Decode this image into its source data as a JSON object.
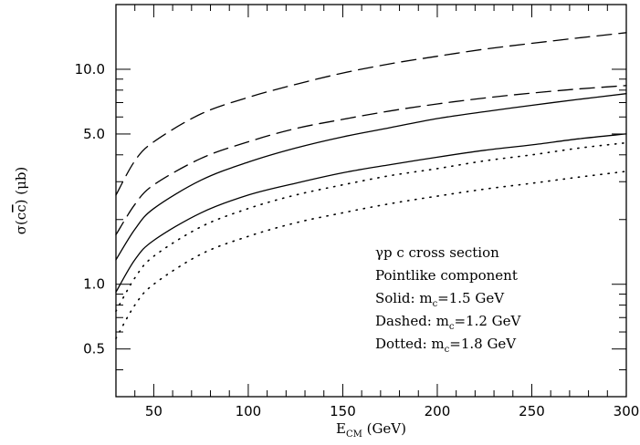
{
  "chart_data": {
    "type": "line",
    "xlabel": {
      "main": "E",
      "sub": "CM",
      "rest": " (GeV)"
    },
    "ylabel": {
      "pre": "σ(c",
      "over": "c",
      "post": ") (μb)"
    },
    "x_scale": "linear",
    "y_scale": "log",
    "xlim": [
      30,
      300
    ],
    "ylim": [
      0.3,
      20
    ],
    "xticks": [
      50,
      100,
      150,
      200,
      250,
      300
    ],
    "xtick_labels": [
      "50",
      "100",
      "150",
      "200",
      "250",
      "300"
    ],
    "yticks": [
      0.5,
      1.0,
      5.0,
      10.0
    ],
    "ytick_labels": [
      "0.5",
      "1.0",
      "5.0",
      "10.0"
    ],
    "annotations": [
      {
        "text": "γp  c cross section"
      },
      {
        "text": "Pointlike component"
      },
      {
        "text": "Solid:  m",
        "sub": "c",
        "rest": "=1.5 GeV"
      },
      {
        "text": "Dashed: m",
        "sub": "c",
        "rest": "=1.2 GeV"
      },
      {
        "text": "Dotted: m",
        "sub": "c",
        "rest": "=1.8 GeV"
      }
    ],
    "x": [
      30,
      40,
      50,
      75,
      100,
      125,
      150,
      175,
      200,
      225,
      250,
      275,
      300
    ],
    "series": [
      {
        "style": "dashed",
        "values": [
          2.6,
          3.75,
          4.6,
          6.2,
          7.4,
          8.5,
          9.6,
          10.6,
          11.5,
          12.4,
          13.2,
          14.0,
          14.8
        ]
      },
      {
        "style": "dashed",
        "values": [
          1.7,
          2.35,
          2.9,
          3.85,
          4.6,
          5.3,
          5.85,
          6.4,
          6.9,
          7.35,
          7.75,
          8.1,
          8.4
        ]
      },
      {
        "style": "solid",
        "values": [
          1.3,
          1.8,
          2.25,
          3.05,
          3.7,
          4.3,
          4.85,
          5.35,
          5.9,
          6.35,
          6.8,
          7.25,
          7.7
        ]
      },
      {
        "style": "solid",
        "values": [
          0.92,
          1.3,
          1.6,
          2.15,
          2.6,
          2.95,
          3.3,
          3.6,
          3.9,
          4.2,
          4.45,
          4.75,
          5.0
        ]
      },
      {
        "style": "dotted",
        "values": [
          0.75,
          1.07,
          1.35,
          1.85,
          2.25,
          2.6,
          2.9,
          3.2,
          3.45,
          3.75,
          4.0,
          4.3,
          4.55
        ]
      },
      {
        "style": "dotted",
        "values": [
          0.56,
          0.8,
          1.0,
          1.38,
          1.67,
          1.93,
          2.15,
          2.37,
          2.57,
          2.77,
          2.95,
          3.15,
          3.35
        ]
      }
    ]
  }
}
